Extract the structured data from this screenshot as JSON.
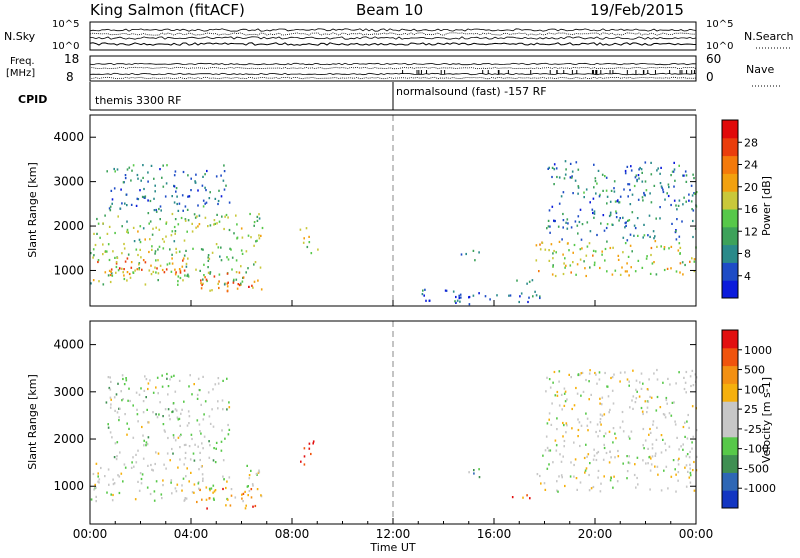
{
  "header": {
    "station": "King Salmon (fitACF)",
    "beam": "Beam 10",
    "date": "19/Feb/2015"
  },
  "noise_panel": {
    "left_label": "N.Sky",
    "right_label": "N.Search",
    "ticks_left": [
      "10^5",
      "10^0"
    ],
    "ticks_right": [
      "10^5",
      "10^0"
    ]
  },
  "freq_panel": {
    "left_label_1": "Freq.",
    "left_label_2": "[MHz]",
    "right_label": "Nave",
    "ticks_left": [
      "18",
      "8"
    ],
    "ticks_right": [
      "60",
      "0"
    ]
  },
  "cpid": {
    "label": "CPID",
    "segments": [
      {
        "name": "themis 3300 RF",
        "start_hour": 0
      },
      {
        "name": "normalsound (fast) -157 RF",
        "start_hour": 12
      }
    ]
  },
  "x_axis": {
    "label": "Time UT",
    "ticks": [
      "00:00",
      "04:00",
      "08:00",
      "12:00",
      "16:00",
      "20:00",
      "00:00"
    ]
  },
  "chart_data": [
    {
      "type": "heatmap",
      "title": "",
      "xlabel": "Time UT",
      "ylabel": "Slant Range [km]",
      "x_range_hours": [
        0,
        24
      ],
      "ylim_km": [
        200,
        4500
      ],
      "y_ticks": [
        "1000",
        "2000",
        "3000",
        "4000"
      ],
      "colorbar": {
        "label": "Power [dB]",
        "ticks": [
          "4",
          "8",
          "12",
          "16",
          "20",
          "24",
          "28"
        ],
        "colors": [
          "#0b1bdb",
          "#1e4cc6",
          "#2a8a8a",
          "#3da25a",
          "#57c84a",
          "#c9c83a",
          "#f2a10f",
          "#f47a0b",
          "#ea3d0c",
          "#e10a0a"
        ]
      },
      "scatter_regions": [
        {
          "t0": 0.0,
          "t1": 6.8,
          "r0": 700,
          "r1": 2300,
          "level": 0.45
        },
        {
          "t0": 0.6,
          "t1": 5.5,
          "r0": 2300,
          "r1": 3400,
          "level": 0.25
        },
        {
          "t0": 0.0,
          "t1": 4.0,
          "r0": 900,
          "r1": 1300,
          "level": 0.75
        },
        {
          "t0": 4.0,
          "t1": 6.8,
          "r0": 550,
          "r1": 1000,
          "level": 0.7
        },
        {
          "t0": 5.6,
          "t1": 6.3,
          "r0": 650,
          "r1": 850,
          "level": 1.0
        },
        {
          "t0": 8.3,
          "t1": 9.0,
          "r0": 1400,
          "r1": 2000,
          "level": 0.45
        },
        {
          "t0": 14.6,
          "t1": 15.4,
          "r0": 1200,
          "r1": 1500,
          "level": 0.3
        },
        {
          "t0": 16.5,
          "t1": 17.8,
          "r0": 700,
          "r1": 850,
          "level": 0.3
        },
        {
          "t0": 17.6,
          "t1": 24.0,
          "r0": 900,
          "r1": 1700,
          "level": 0.55
        },
        {
          "t0": 18.0,
          "t1": 24.0,
          "r0": 1700,
          "r1": 3500,
          "level": 0.25
        },
        {
          "t0": 13.0,
          "t1": 18.0,
          "r0": 250,
          "r1": 600,
          "level": 0.15
        }
      ]
    },
    {
      "type": "heatmap",
      "title": "",
      "xlabel": "Time UT",
      "ylabel": "Slant Range [km]",
      "x_range_hours": [
        0,
        24
      ],
      "ylim_km": [
        200,
        4500
      ],
      "y_ticks": [
        "1000",
        "2000",
        "3000",
        "4000"
      ],
      "colorbar": {
        "label": "Velocity [m s-1]",
        "ticks": [
          "1000",
          "500",
          "100",
          "25",
          "-25",
          "-100",
          "-500",
          "-1000"
        ],
        "colors": [
          "#1336c2",
          "#2e67b5",
          "#3f8f52",
          "#57c849",
          "#c7c7c7",
          "#c7c7c7",
          "#f5b00d",
          "#f39012",
          "#f0540d",
          "#e21010"
        ]
      },
      "scatter_regions": [
        {
          "t0": 0.0,
          "t1": 6.8,
          "r0": 700,
          "r1": 1500,
          "level": 0.5
        },
        {
          "t0": 0.6,
          "t1": 5.5,
          "r0": 1500,
          "r1": 3400,
          "level": 0.45
        },
        {
          "t0": 4.0,
          "t1": 6.8,
          "r0": 550,
          "r1": 1000,
          "level": 0.75
        },
        {
          "t0": 8.3,
          "t1": 9.0,
          "r0": 1400,
          "r1": 2000,
          "level": 0.95
        },
        {
          "t0": 14.6,
          "t1": 15.4,
          "r0": 1200,
          "r1": 1500,
          "level": 0.25
        },
        {
          "t0": 16.5,
          "t1": 17.8,
          "r0": 700,
          "r1": 850,
          "level": 0.75
        },
        {
          "t0": 17.6,
          "t1": 24.0,
          "r0": 900,
          "r1": 1700,
          "level": 0.5
        },
        {
          "t0": 18.0,
          "t1": 24.0,
          "r0": 1700,
          "r1": 3500,
          "level": 0.5
        }
      ]
    }
  ]
}
